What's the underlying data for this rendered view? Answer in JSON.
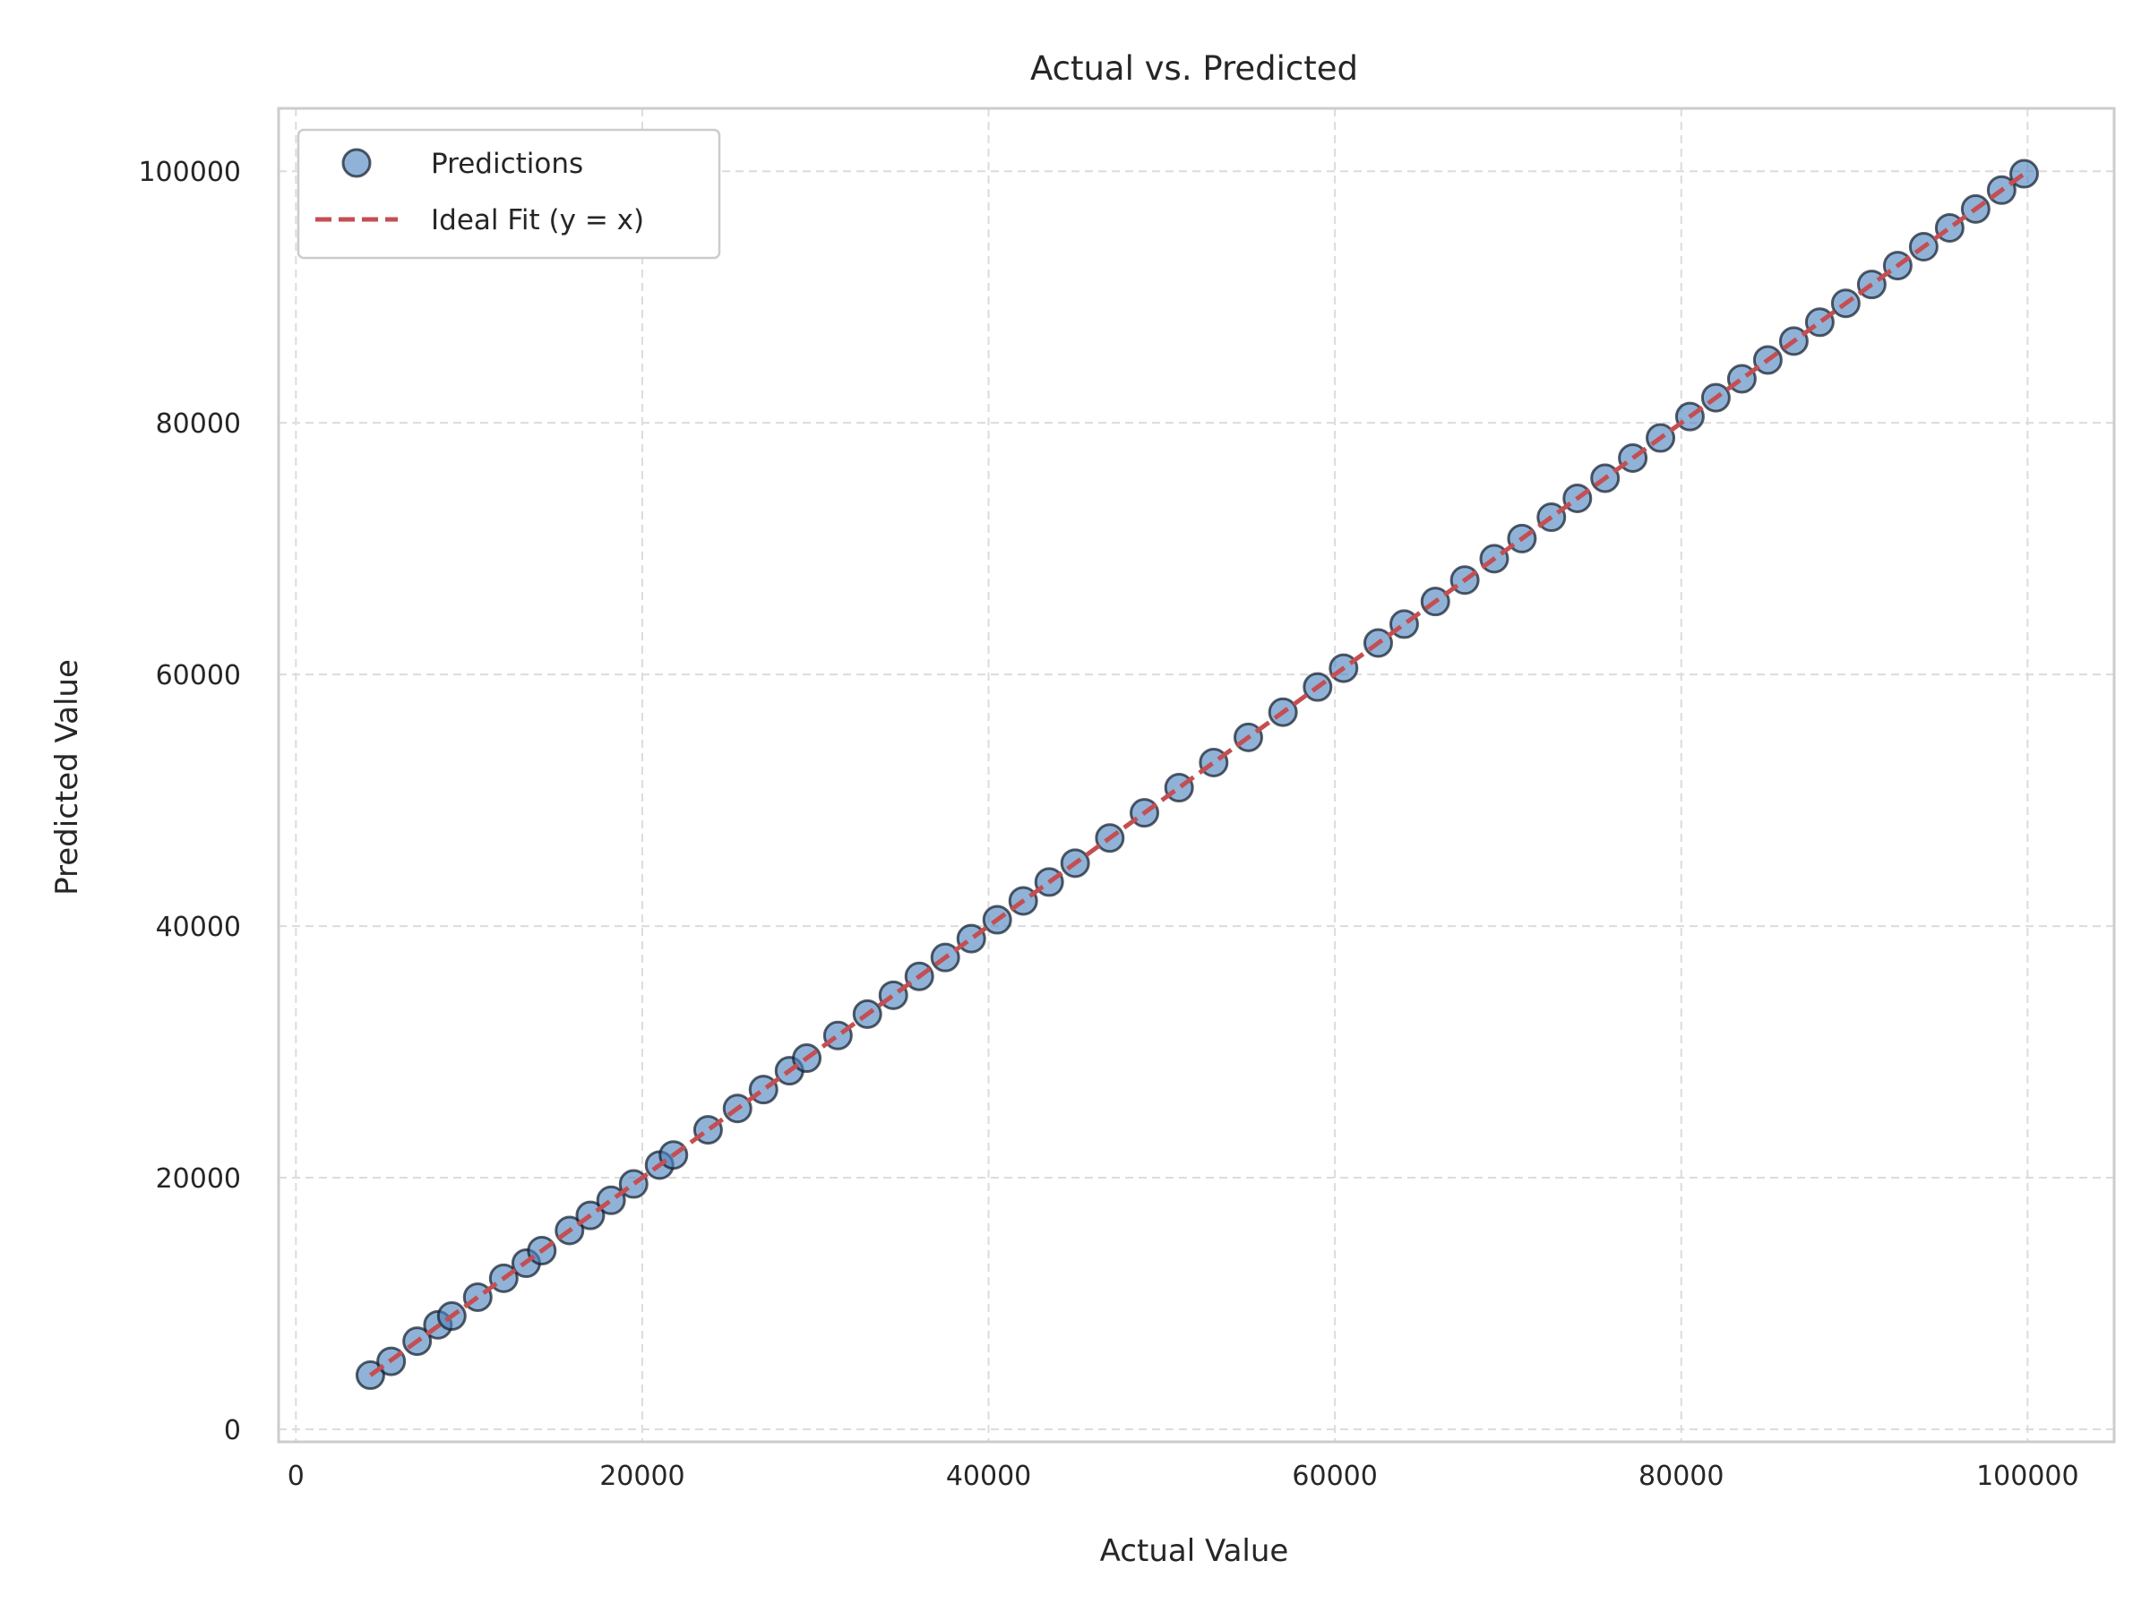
{
  "chart_data": {
    "type": "scatter",
    "title": "Actual vs. Predicted",
    "xlabel": "Actual Value",
    "ylabel": "Predicted Value",
    "xlim": [
      -1000,
      105000
    ],
    "ylim": [
      -1000,
      105000
    ],
    "x_ticks": [
      0,
      20000,
      40000,
      60000,
      80000,
      100000
    ],
    "y_ticks": [
      0,
      20000,
      40000,
      60000,
      80000,
      100000
    ],
    "x_tick_labels": [
      "0",
      "20000",
      "40000",
      "60000",
      "80000",
      "100000"
    ],
    "y_tick_labels": [
      "0",
      "20000",
      "40000",
      "60000",
      "80000",
      "100000"
    ],
    "grid": true,
    "legend_position": "top-left",
    "legend": [
      {
        "label": "Predictions",
        "marker": "circle",
        "color": "#4c82be"
      },
      {
        "label": "Ideal Fit (y = x)",
        "marker": "dashed-line",
        "color": "#c44e52"
      }
    ],
    "series": [
      {
        "name": "Predictions",
        "type": "scatter",
        "color": "#4c82be",
        "points": [
          {
            "x": 4300,
            "y": 4300
          },
          {
            "x": 5500,
            "y": 5400
          },
          {
            "x": 7000,
            "y": 7000
          },
          {
            "x": 8200,
            "y": 8300
          },
          {
            "x": 9000,
            "y": 9000
          },
          {
            "x": 10500,
            "y": 10500
          },
          {
            "x": 12000,
            "y": 12000
          },
          {
            "x": 13300,
            "y": 13200
          },
          {
            "x": 14200,
            "y": 14200
          },
          {
            "x": 15800,
            "y": 15800
          },
          {
            "x": 17000,
            "y": 17000
          },
          {
            "x": 18200,
            "y": 18200
          },
          {
            "x": 19500,
            "y": 19500
          },
          {
            "x": 21000,
            "y": 21000
          },
          {
            "x": 21800,
            "y": 21800
          },
          {
            "x": 23800,
            "y": 23800
          },
          {
            "x": 25500,
            "y": 25500
          },
          {
            "x": 27000,
            "y": 27000
          },
          {
            "x": 28500,
            "y": 28500
          },
          {
            "x": 29500,
            "y": 29500
          },
          {
            "x": 31300,
            "y": 31300
          },
          {
            "x": 33000,
            "y": 33000
          },
          {
            "x": 34500,
            "y": 34500
          },
          {
            "x": 36000,
            "y": 36000
          },
          {
            "x": 37500,
            "y": 37500
          },
          {
            "x": 39000,
            "y": 39000
          },
          {
            "x": 40500,
            "y": 40500
          },
          {
            "x": 42000,
            "y": 42000
          },
          {
            "x": 43500,
            "y": 43500
          },
          {
            "x": 45000,
            "y": 45000
          },
          {
            "x": 47000,
            "y": 47000
          },
          {
            "x": 49000,
            "y": 49000
          },
          {
            "x": 51000,
            "y": 51000
          },
          {
            "x": 53000,
            "y": 53000
          },
          {
            "x": 55000,
            "y": 55000
          },
          {
            "x": 57000,
            "y": 57000
          },
          {
            "x": 59000,
            "y": 59000
          },
          {
            "x": 60500,
            "y": 60500
          },
          {
            "x": 62500,
            "y": 62500
          },
          {
            "x": 64000,
            "y": 64000
          },
          {
            "x": 65800,
            "y": 65800
          },
          {
            "x": 67500,
            "y": 67500
          },
          {
            "x": 69200,
            "y": 69200
          },
          {
            "x": 70800,
            "y": 70800
          },
          {
            "x": 72500,
            "y": 72500
          },
          {
            "x": 74000,
            "y": 74000
          },
          {
            "x": 75600,
            "y": 75600
          },
          {
            "x": 77200,
            "y": 77200
          },
          {
            "x": 78800,
            "y": 78800
          },
          {
            "x": 80500,
            "y": 80500
          },
          {
            "x": 82000,
            "y": 82000
          },
          {
            "x": 83500,
            "y": 83500
          },
          {
            "x": 85000,
            "y": 85000
          },
          {
            "x": 86500,
            "y": 86500
          },
          {
            "x": 88000,
            "y": 88000
          },
          {
            "x": 89500,
            "y": 89500
          },
          {
            "x": 91000,
            "y": 91000
          },
          {
            "x": 92500,
            "y": 92500
          },
          {
            "x": 94000,
            "y": 94000
          },
          {
            "x": 95500,
            "y": 95500
          },
          {
            "x": 97000,
            "y": 97000
          },
          {
            "x": 98500,
            "y": 98500
          },
          {
            "x": 99800,
            "y": 99800
          }
        ]
      },
      {
        "name": "Ideal Fit (y = x)",
        "type": "line",
        "style": "dashed",
        "color": "#c44e52",
        "points": [
          {
            "x": 4300,
            "y": 4300
          },
          {
            "x": 100000,
            "y": 100000
          }
        ]
      }
    ]
  }
}
